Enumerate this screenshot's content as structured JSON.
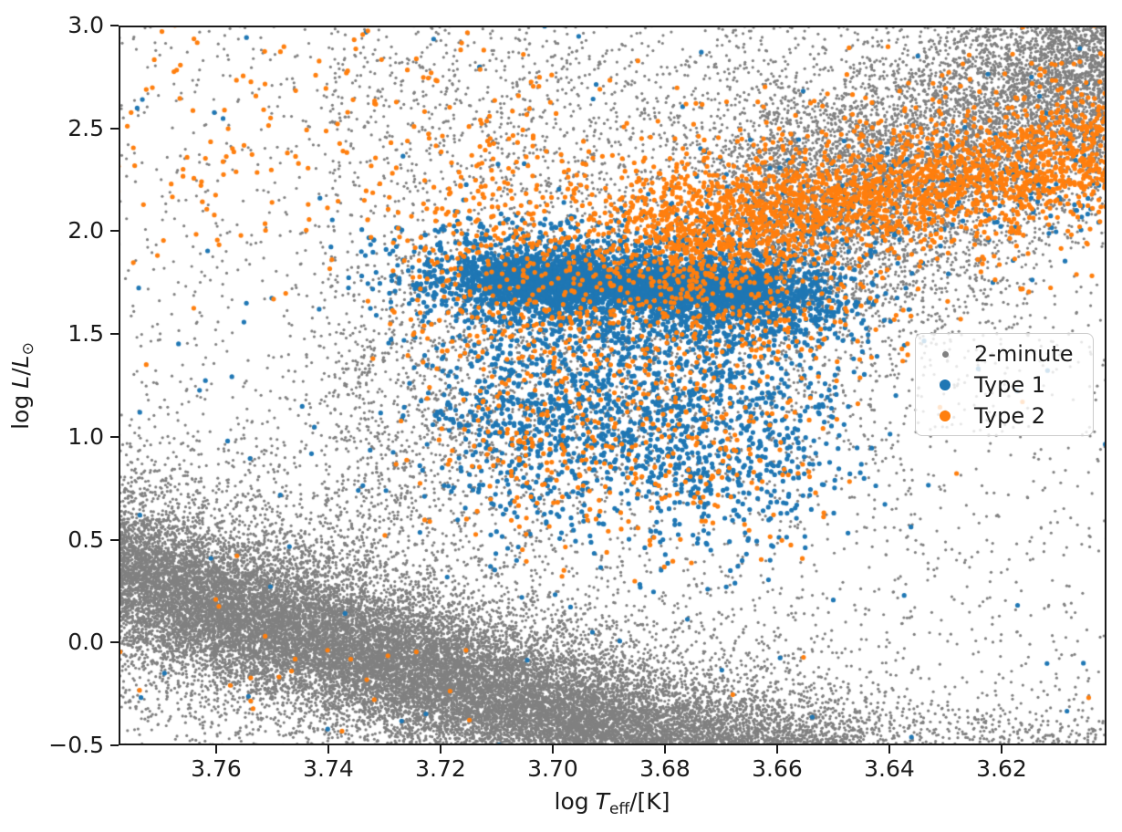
{
  "chart_data": {
    "type": "scatter",
    "title": "",
    "xlabel": "log T_eff/[K]",
    "ylabel": "log L/L_sun",
    "xlabel_parts": {
      "log": "log",
      "symbol": "T",
      "subscript": "eff",
      "unit": "/[K]"
    },
    "ylabel_parts": {
      "log": "log",
      "symbol": "L",
      "slash": "/",
      "symbol2": "L",
      "subscript": "⊙"
    },
    "x_axis": {
      "min": 3.6013,
      "max": 3.7774,
      "inverted": true,
      "grid": false,
      "tick_values": [
        3.76,
        3.74,
        3.72,
        3.7,
        3.68,
        3.66,
        3.64,
        3.62
      ],
      "tick_labels": [
        "3.76",
        "3.74",
        "3.72",
        "3.70",
        "3.68",
        "3.66",
        "3.64",
        "3.62"
      ]
    },
    "y_axis": {
      "min": -0.5,
      "max": 3.0,
      "grid": false,
      "tick_values": [
        3.0,
        2.5,
        2.0,
        1.5,
        1.0,
        0.5,
        0.0,
        -0.5
      ],
      "tick_labels": [
        "3.0",
        "2.5",
        "2.0",
        "1.5",
        "1.0",
        "0.5",
        "0.0",
        "−0.5"
      ]
    },
    "legend": {
      "position": "center-right",
      "entries": [
        {
          "label": "2-minute",
          "color": "#808080",
          "marker_px": 7
        },
        {
          "label": "Type 1",
          "color": "#1f77b4",
          "marker_px": 12
        },
        {
          "label": "Type 2",
          "color": "#ff7f0e",
          "marker_px": 12
        }
      ]
    },
    "seed": 11,
    "series": [
      {
        "name": "2-minute",
        "color": "#808080",
        "radius": 1.6,
        "clusters": [
          {
            "n": 24000,
            "x0": 3.784,
            "x1": 3.645,
            "y0": 0.4,
            "y1": -0.84,
            "sx": 0.004,
            "sy": 0.17
          },
          {
            "n": 8500,
            "x0": 3.784,
            "x1": 3.645,
            "y0": 0.4,
            "y1": -0.84,
            "sx": 0.004,
            "sy": 0.36
          },
          {
            "n": 1400,
            "x0": 3.665,
            "x1": 3.596,
            "y0": -0.45,
            "y1": -0.62,
            "sx": 0.004,
            "sy": 0.14
          },
          {
            "n": 4200,
            "x0": 3.74,
            "x1": 3.62,
            "y0": 1.05,
            "y1": 2.2,
            "sx": 0.004,
            "sy": 0.5
          },
          {
            "n": 6000,
            "x0": 3.668,
            "x1": 3.594,
            "y0": 2.05,
            "y1": 2.75,
            "sx": 0.004,
            "sy": 0.28
          },
          {
            "n": 3200,
            "x0": 3.603,
            "x1": 3.597,
            "y0": 2.95,
            "y1": 2.85,
            "sx": 0.015,
            "sy": 0.24
          },
          {
            "n": 900,
            "x0": 3.74,
            "x1": 3.655,
            "y0": 2.75,
            "y1": 2.55,
            "sx": 0.0,
            "sy": 0.35
          },
          {
            "n": 3200,
            "uniform": true,
            "x0": 3.778,
            "x1": 3.596,
            "y0": -0.52,
            "y1": 3.02
          }
        ]
      },
      {
        "name": "Type 1",
        "color": "#1f77b4",
        "radius": 2.6,
        "clusters": [
          {
            "n": 2400,
            "x0": 3.7115,
            "x1": 3.663,
            "y0": 1.77,
            "y1": 1.71,
            "sx": 0.0045,
            "sy": 0.05
          },
          {
            "n": 2500,
            "x0": 3.718,
            "x1": 3.654,
            "y0": 1.79,
            "y1": 1.66,
            "sx": 0.009,
            "sy": 0.13
          },
          {
            "n": 1600,
            "x0": 3.714,
            "x1": 3.657,
            "y0": 1.18,
            "y1": 1.02,
            "sx": 0.008,
            "sy": 0.28
          },
          {
            "n": 280,
            "x0": 3.678,
            "x1": 3.6,
            "y0": 1.95,
            "y1": 2.32,
            "sx": 0.004,
            "sy": 0.17
          },
          {
            "n": 130,
            "uniform": true,
            "x0": 3.778,
            "x1": 3.596,
            "y0": -0.5,
            "y1": 3.0
          }
        ]
      },
      {
        "name": "Type 2",
        "color": "#ff7f0e",
        "radius": 2.6,
        "clusters": [
          {
            "n": 1800,
            "x0": 3.684,
            "x1": 3.594,
            "y0": 1.97,
            "y1": 2.42,
            "sx": 0.005,
            "sy": 0.13
          },
          {
            "n": 650,
            "x0": 3.684,
            "x1": 3.594,
            "y0": 1.97,
            "y1": 2.42,
            "sx": 0.005,
            "sy": 0.3
          },
          {
            "n": 900,
            "x0": 3.721,
            "x1": 3.652,
            "y0": 1.88,
            "y1": 1.68,
            "sx": 0.008,
            "sy": 0.33
          },
          {
            "n": 300,
            "x0": 3.714,
            "x1": 3.66,
            "y0": 0.98,
            "y1": 0.85,
            "sx": 0.008,
            "sy": 0.24
          },
          {
            "n": 170,
            "x0": 3.779,
            "x1": 3.7,
            "y0": 2.45,
            "y1": 2.45,
            "sx": 0.0,
            "sy": 0.33
          },
          {
            "n": 14,
            "x0": 3.776,
            "x1": 3.706,
            "y0": 0.02,
            "y1": -0.32,
            "sx": 0.003,
            "sy": 0.14
          },
          {
            "n": 55,
            "uniform": true,
            "x0": 3.778,
            "x1": 3.596,
            "y0": -0.5,
            "y1": 3.0
          }
        ]
      }
    ]
  }
}
